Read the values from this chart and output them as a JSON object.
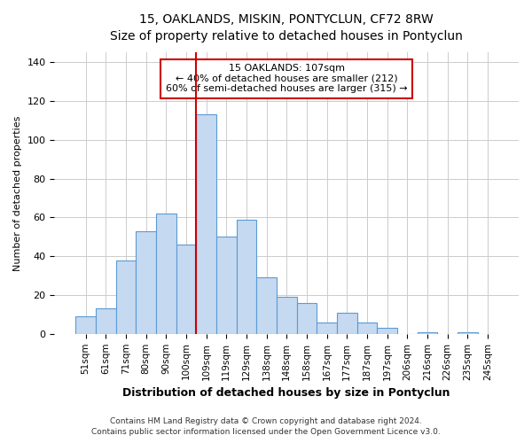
{
  "title": "15, OAKLANDS, MISKIN, PONTYCLUN, CF72 8RW",
  "subtitle": "Size of property relative to detached houses in Pontyclun",
  "xlabel": "Distribution of detached houses by size in Pontyclun",
  "ylabel": "Number of detached properties",
  "bar_color": "#c5d9f0",
  "bar_edge_color": "#5b9bd5",
  "categories": [
    "51sqm",
    "61sqm",
    "71sqm",
    "80sqm",
    "90sqm",
    "100sqm",
    "109sqm",
    "119sqm",
    "129sqm",
    "138sqm",
    "148sqm",
    "158sqm",
    "167sqm",
    "177sqm",
    "187sqm",
    "197sqm",
    "206sqm",
    "216sqm",
    "226sqm",
    "235sqm",
    "245sqm"
  ],
  "values": [
    9,
    13,
    38,
    53,
    62,
    46,
    113,
    50,
    59,
    29,
    19,
    16,
    6,
    11,
    6,
    3,
    0,
    1,
    0,
    1,
    0
  ],
  "vline_color": "#cc0000",
  "ylim": [
    0,
    145
  ],
  "yticks": [
    0,
    20,
    40,
    60,
    80,
    100,
    120,
    140
  ],
  "annotation_title": "15 OAKLANDS: 107sqm",
  "annotation_line1": "← 40% of detached houses are smaller (212)",
  "annotation_line2": "60% of semi-detached houses are larger (315) →",
  "box_color": "#cc0000",
  "footer1": "Contains HM Land Registry data © Crown copyright and database right 2024.",
  "footer2": "Contains public sector information licensed under the Open Government Licence v3.0.",
  "background_color": "#ffffff",
  "grid_color": "#cccccc"
}
